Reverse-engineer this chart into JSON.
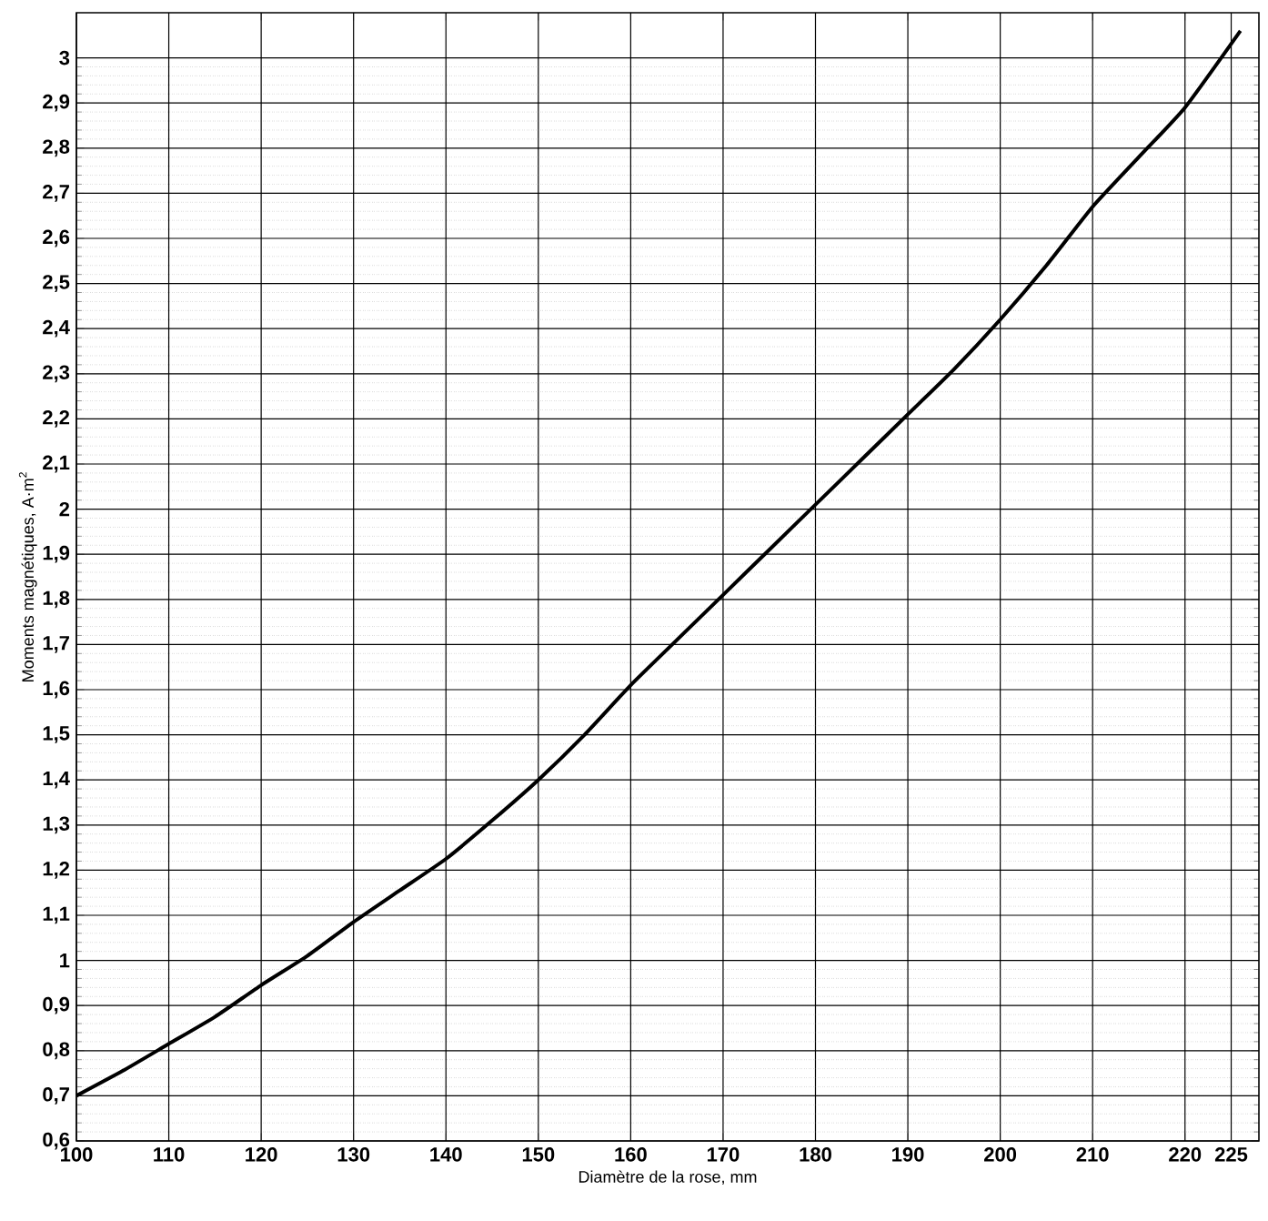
{
  "chart_data": {
    "type": "line",
    "xlabel": "Diamètre de la rose, mm",
    "ylabel": "Moments magnétiques, A·m$^{2}$",
    "x": [
      100,
      105,
      110,
      115,
      120,
      125,
      130,
      135,
      140,
      145,
      150,
      155,
      160,
      165,
      170,
      175,
      180,
      185,
      190,
      195,
      200,
      205,
      210,
      215,
      220,
      226
    ],
    "series": [
      {
        "color": "#000000",
        "values": [
          0.7,
          0.755,
          0.815,
          0.875,
          0.945,
          1.01,
          1.085,
          1.155,
          1.225,
          1.31,
          1.4,
          1.5,
          1.61,
          1.71,
          1.81,
          1.91,
          2.01,
          2.11,
          2.21,
          2.31,
          2.42,
          2.54,
          2.67,
          2.78,
          2.89,
          3.06
        ]
      }
    ],
    "xlim": [
      100,
      228
    ],
    "ylim": [
      0.6,
      3.1
    ],
    "xticks": [
      100,
      110,
      120,
      130,
      140,
      150,
      160,
      170,
      180,
      190,
      200,
      210,
      220,
      225
    ],
    "yticks": [
      {
        "value": 0.6,
        "label": "0,6"
      },
      {
        "value": 0.7,
        "label": "0,7"
      },
      {
        "value": 0.8,
        "label": "0,8"
      },
      {
        "value": 0.9,
        "label": "0,9"
      },
      1,
      {
        "value": 1.1,
        "label": "1,1"
      },
      {
        "value": 1.2,
        "label": "1,2"
      },
      {
        "value": 1.3,
        "label": "1,3"
      },
      {
        "value": 1.4,
        "label": "1,4"
      },
      {
        "value": 1.5,
        "label": "1,5"
      },
      {
        "value": 1.6,
        "label": "1,6"
      },
      {
        "value": 1.7,
        "label": "1,7"
      },
      {
        "value": 1.8,
        "label": "1,8"
      },
      {
        "value": 1.9,
        "label": "1,9"
      },
      2,
      {
        "value": 2.1,
        "label": "2,1"
      },
      {
        "value": 2.2,
        "label": "2,2"
      },
      {
        "value": 2.3,
        "label": "2,3"
      },
      {
        "value": 2.4,
        "label": "2,4"
      },
      {
        "value": 2.5,
        "label": "2,5"
      },
      {
        "value": 2.6,
        "label": "2,6"
      },
      {
        "value": 2.7,
        "label": "2,7"
      },
      {
        "value": 2.8,
        "label": "2,8"
      },
      {
        "value": 2.9,
        "label": "2,9"
      },
      3
    ],
    "grid": true,
    "marker": "none",
    "line_style": "solid"
  }
}
